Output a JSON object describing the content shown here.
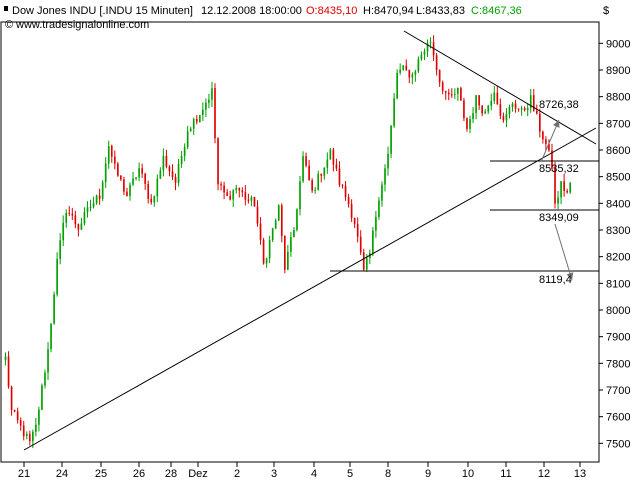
{
  "header": {
    "instrument": "Dow Jones INDU [.INDU  15 Minuten]",
    "datetime": "12.12.2008 18:00:00",
    "open": "O:8435,10",
    "high": "H:8470,94",
    "low": "L:8433,83",
    "close": "C:8467,36",
    "watermark": "www.tradesignalonline.com",
    "currency_symbol": "$"
  },
  "colors": {
    "up_candle": "#00a000",
    "down_candle": "#e00000",
    "background": "#ffffff",
    "lines": "#000000",
    "arrows": "#707070"
  },
  "chart_data": {
    "type": "candlestick",
    "title": "Dow Jones INDU [.INDU  15 Minuten]",
    "xlabel": "",
    "ylabel": "",
    "ylim": [
      7430,
      9080
    ],
    "y_ticks": [
      7500,
      7600,
      7700,
      7800,
      7900,
      8000,
      8100,
      8200,
      8300,
      8400,
      8500,
      8600,
      8700,
      8800,
      8900,
      9000
    ],
    "x_tick_labels": [
      "21",
      "24",
      "25",
      "26",
      "28",
      "Dez",
      "2",
      "3",
      "4",
      "5",
      "8",
      "9",
      "10",
      "11",
      "12",
      "13"
    ],
    "grid": false,
    "price_path_anchors": [
      [
        0,
        7820
      ],
      [
        2,
        7620
      ],
      [
        8,
        7500
      ],
      [
        10,
        7560
      ],
      [
        14,
        7850
      ],
      [
        17,
        8180
      ],
      [
        20,
        8380
      ],
      [
        24,
        8310
      ],
      [
        28,
        8390
      ],
      [
        31,
        8430
      ],
      [
        34,
        8620
      ],
      [
        36,
        8530
      ],
      [
        40,
        8430
      ],
      [
        44,
        8530
      ],
      [
        48,
        8400
      ],
      [
        52,
        8570
      ],
      [
        56,
        8480
      ],
      [
        60,
        8680
      ],
      [
        64,
        8740
      ],
      [
        68,
        8820
      ],
      [
        70,
        8470
      ],
      [
        73,
        8420
      ],
      [
        76,
        8460
      ],
      [
        80,
        8410
      ],
      [
        82,
        8400
      ],
      [
        85,
        8170
      ],
      [
        88,
        8300
      ],
      [
        90,
        8380
      ],
      [
        92,
        8160
      ],
      [
        95,
        8300
      ],
      [
        98,
        8570
      ],
      [
        101,
        8440
      ],
      [
        104,
        8520
      ],
      [
        107,
        8590
      ],
      [
        110,
        8480
      ],
      [
        113,
        8400
      ],
      [
        115,
        8330
      ],
      [
        118,
        8140
      ],
      [
        120,
        8210
      ],
      [
        123,
        8430
      ],
      [
        126,
        8580
      ],
      [
        129,
        8890
      ],
      [
        131,
        8900
      ],
      [
        134,
        8880
      ],
      [
        137,
        8960
      ],
      [
        140,
        9010
      ],
      [
        143,
        8860
      ],
      [
        146,
        8790
      ],
      [
        149,
        8820
      ],
      [
        152,
        8680
      ],
      [
        155,
        8790
      ],
      [
        158,
        8740
      ],
      [
        161,
        8830
      ],
      [
        164,
        8700
      ],
      [
        167,
        8780
      ],
      [
        170,
        8740
      ],
      [
        173,
        8790
      ],
      [
        176,
        8680
      ],
      [
        178,
        8620
      ],
      [
        180,
        8540
      ],
      [
        181,
        8390
      ],
      [
        183,
        8470
      ],
      [
        185,
        8440
      ],
      [
        186,
        8467
      ]
    ],
    "annotations": [
      {
        "label": "8726,38",
        "value": 8726.38
      },
      {
        "label": "8535,32",
        "value": 8535.32
      },
      {
        "label": "8349,09",
        "value": 8349.09
      },
      {
        "label": "8119,4",
        "value": 8119.4
      }
    ],
    "horizontal_levels": [
      8535.32,
      8349.09,
      8119.4
    ],
    "trendlines": [
      {
        "from": [
          7490,
          "21"
        ],
        "to": [
          8660,
          "13"
        ],
        "kind": "rising support"
      },
      {
        "from": [
          9020,
          "8"
        ],
        "to": [
          8590,
          "13"
        ],
        "kind": "falling resistance"
      }
    ]
  }
}
